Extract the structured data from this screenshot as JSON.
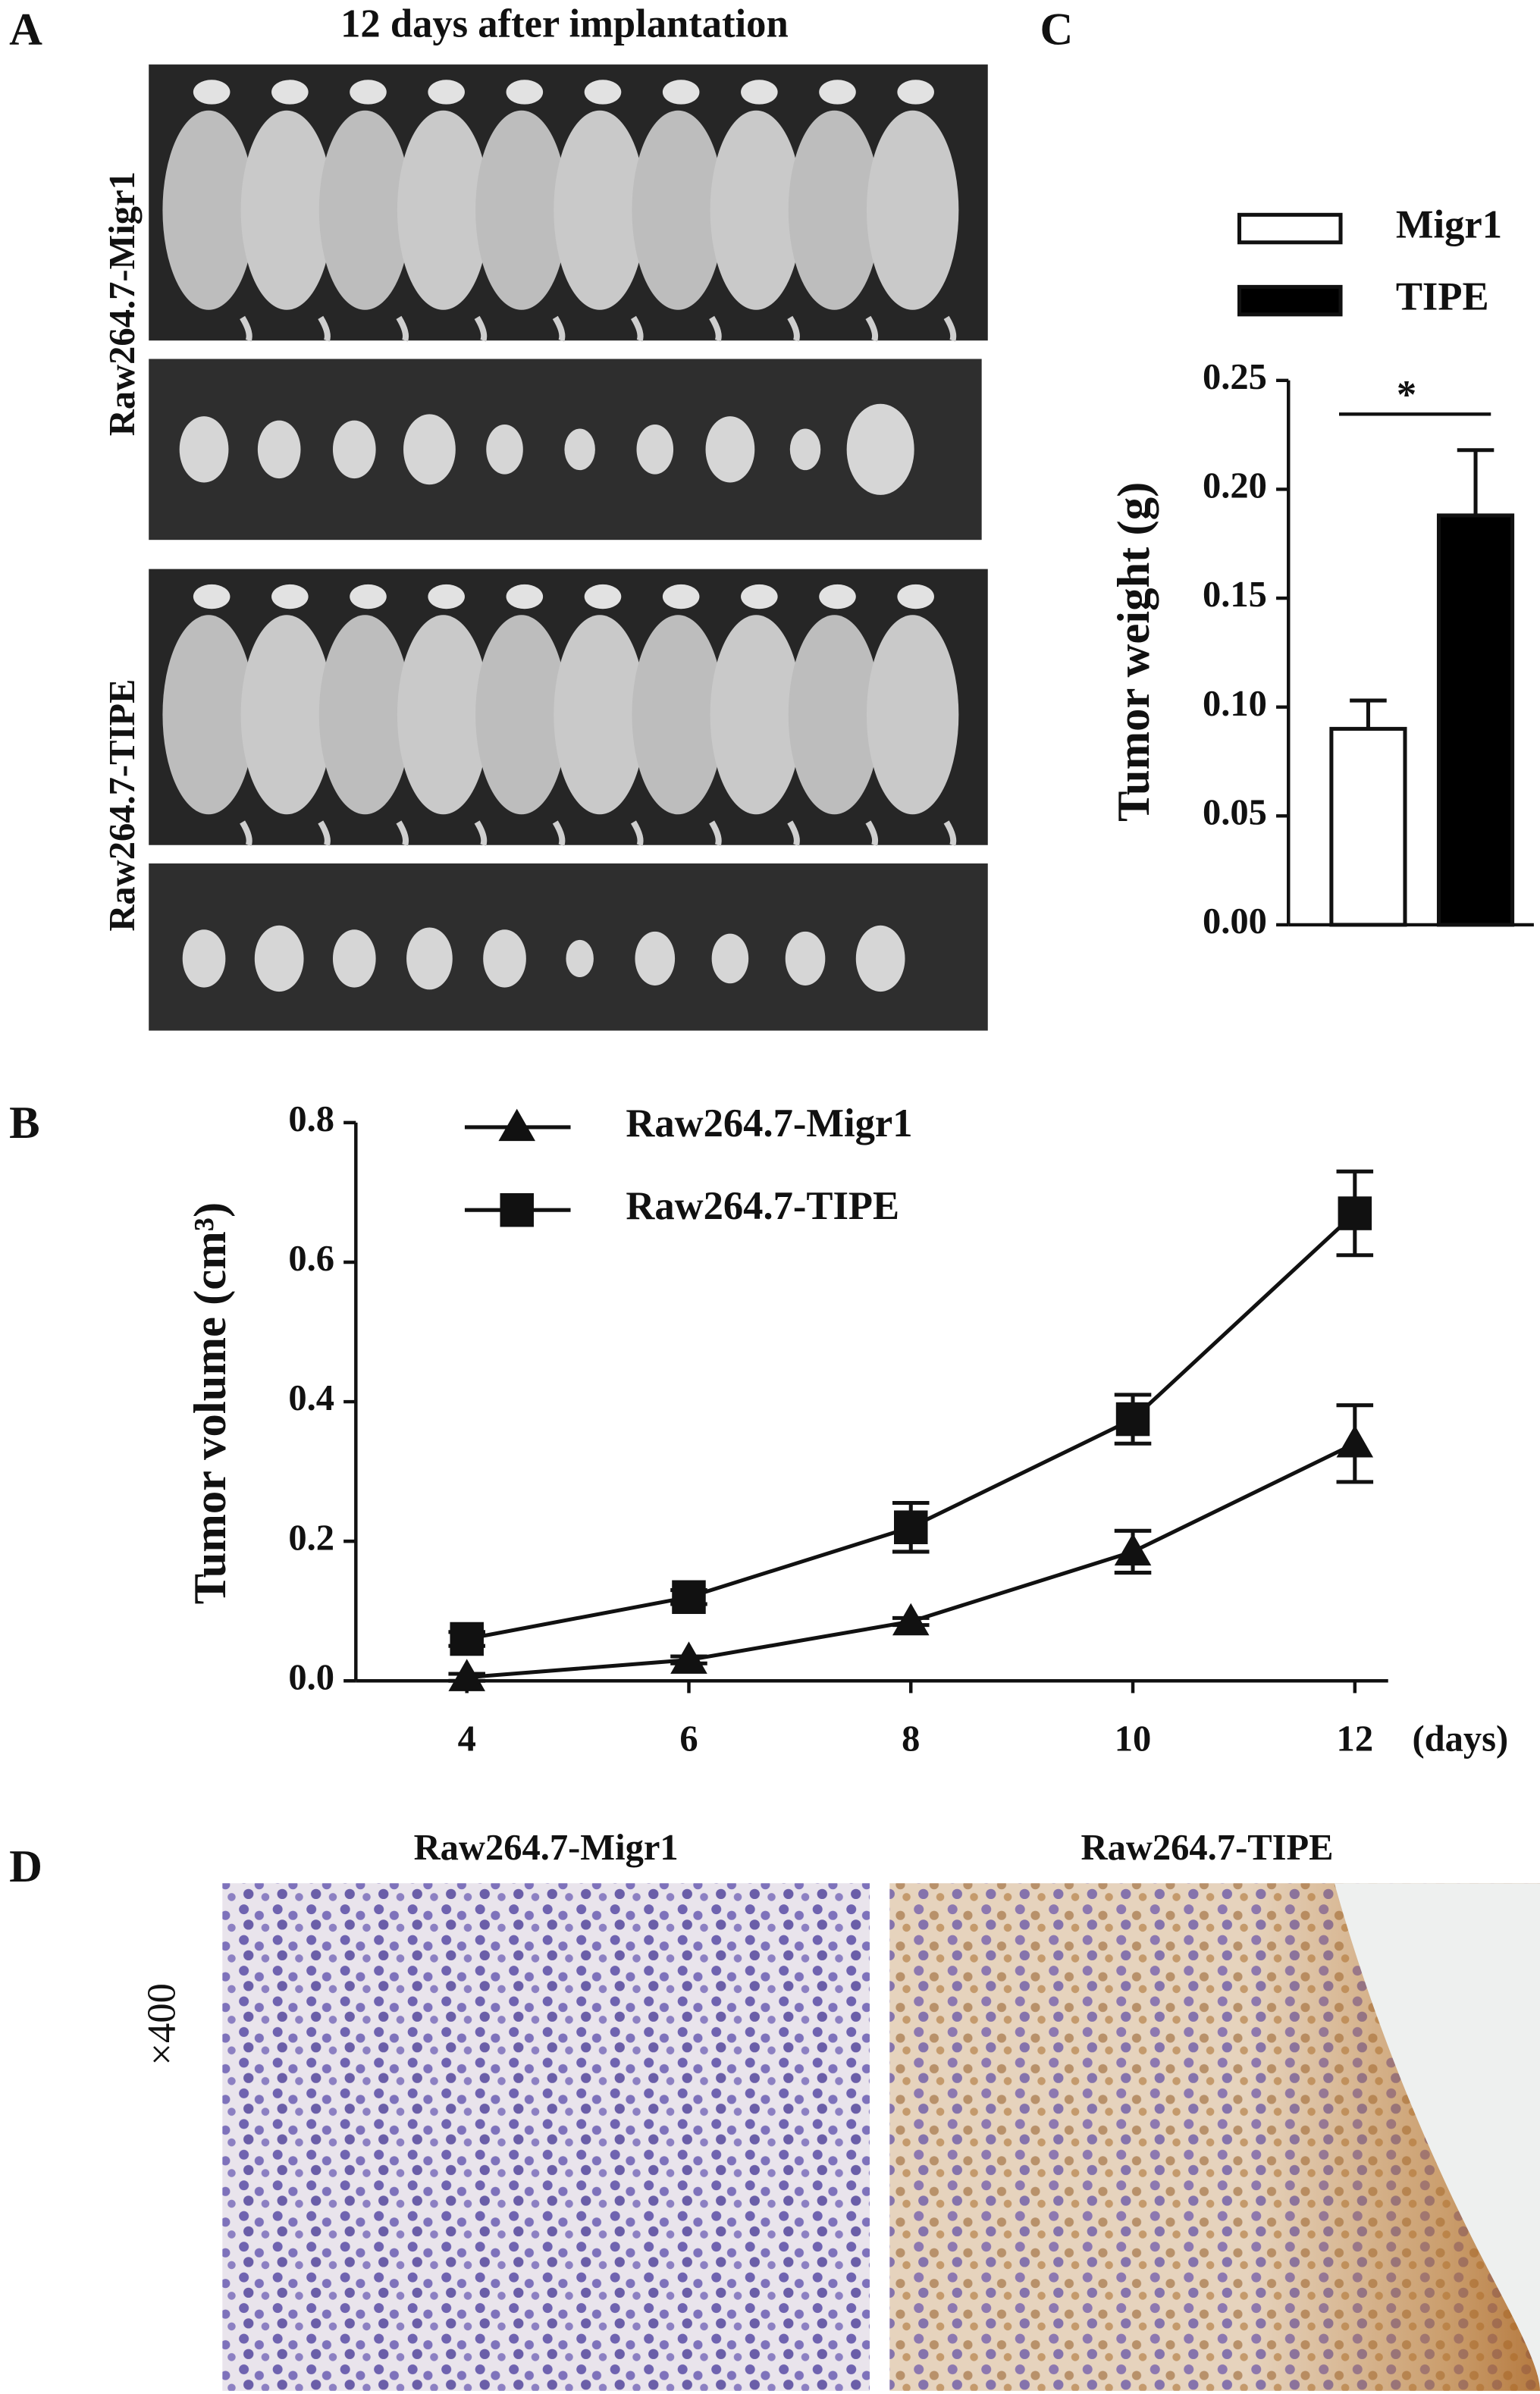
{
  "panels": {
    "A": {
      "label": "A",
      "title": "12 days after implantation",
      "row_labels": [
        "Raw264.7-Migr1",
        "Raw264.7-TIPE"
      ]
    },
    "D": {
      "label": "D",
      "titles": [
        "Raw264.7-Migr1",
        "Raw264.7-TIPE"
      ],
      "magnification": "×400"
    }
  },
  "chart_data": [
    {
      "type": "line",
      "panel_label": "B",
      "y_label": "Tumor volume (cm³)",
      "x_label": "(days)",
      "x": [
        4,
        6,
        8,
        10,
        12
      ],
      "xlim": [
        3,
        12.3
      ],
      "xticks": [
        4,
        6,
        8,
        10,
        12
      ],
      "ylim": [
        0,
        0.8
      ],
      "yticks": [
        {
          "value": 0,
          "label": "0.0"
        },
        0.2,
        0.4,
        0.6,
        0.8
      ],
      "series": [
        {
          "name": "Raw264.7-Migr1",
          "color": "#111111",
          "marker": "triangle",
          "values": [
            0.005,
            0.03,
            0.085,
            0.185,
            0.34
          ],
          "error": [
            0.005,
            0.005,
            0.005,
            0.03,
            0.055
          ]
        },
        {
          "name": "Raw264.7-TIPE",
          "color": "#111111",
          "marker": "square",
          "values": [
            0.06,
            0.12,
            0.22,
            0.375,
            0.67
          ],
          "error": [
            0.01,
            0.01,
            0.035,
            0.035,
            0.06
          ]
        }
      ]
    },
    {
      "type": "bar",
      "panel_label": "C",
      "y_label": "Tumor weight (g)",
      "ylim": [
        0,
        0.25
      ],
      "yticks": [
        {
          "value": 0,
          "label": "0.00"
        },
        {
          "value": 0.05,
          "label": "0.05"
        },
        {
          "value": 0.1,
          "label": "0.10"
        },
        {
          "value": 0.15,
          "label": "0.15"
        },
        {
          "value": 0.2,
          "label": "0.20"
        },
        {
          "value": 0.25,
          "label": "0.25"
        }
      ],
      "series": [
        {
          "name": "Migr1",
          "color": "#ffffff",
          "values": [
            0.09
          ],
          "error": [
            0.013
          ]
        },
        {
          "name": "TIPE",
          "color": "#000000",
          "values": [
            0.188
          ],
          "error": [
            0.03
          ]
        }
      ],
      "annotation": "*"
    }
  ]
}
